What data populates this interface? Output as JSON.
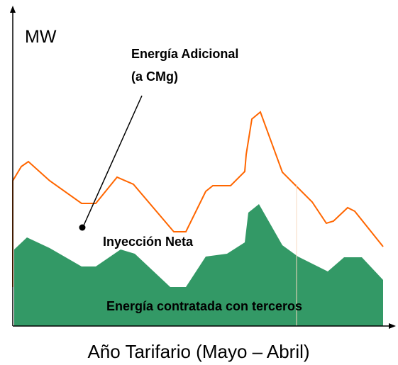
{
  "y_label": "MW",
  "annotations": {
    "additional_line1": "Energía Adicional",
    "additional_line2": "(a CMg)",
    "net_injection": "Inyección Neta",
    "contracted": "Energía contratada con terceros"
  },
  "x_label": "Año Tarifario (Mayo – Abril)"
}
